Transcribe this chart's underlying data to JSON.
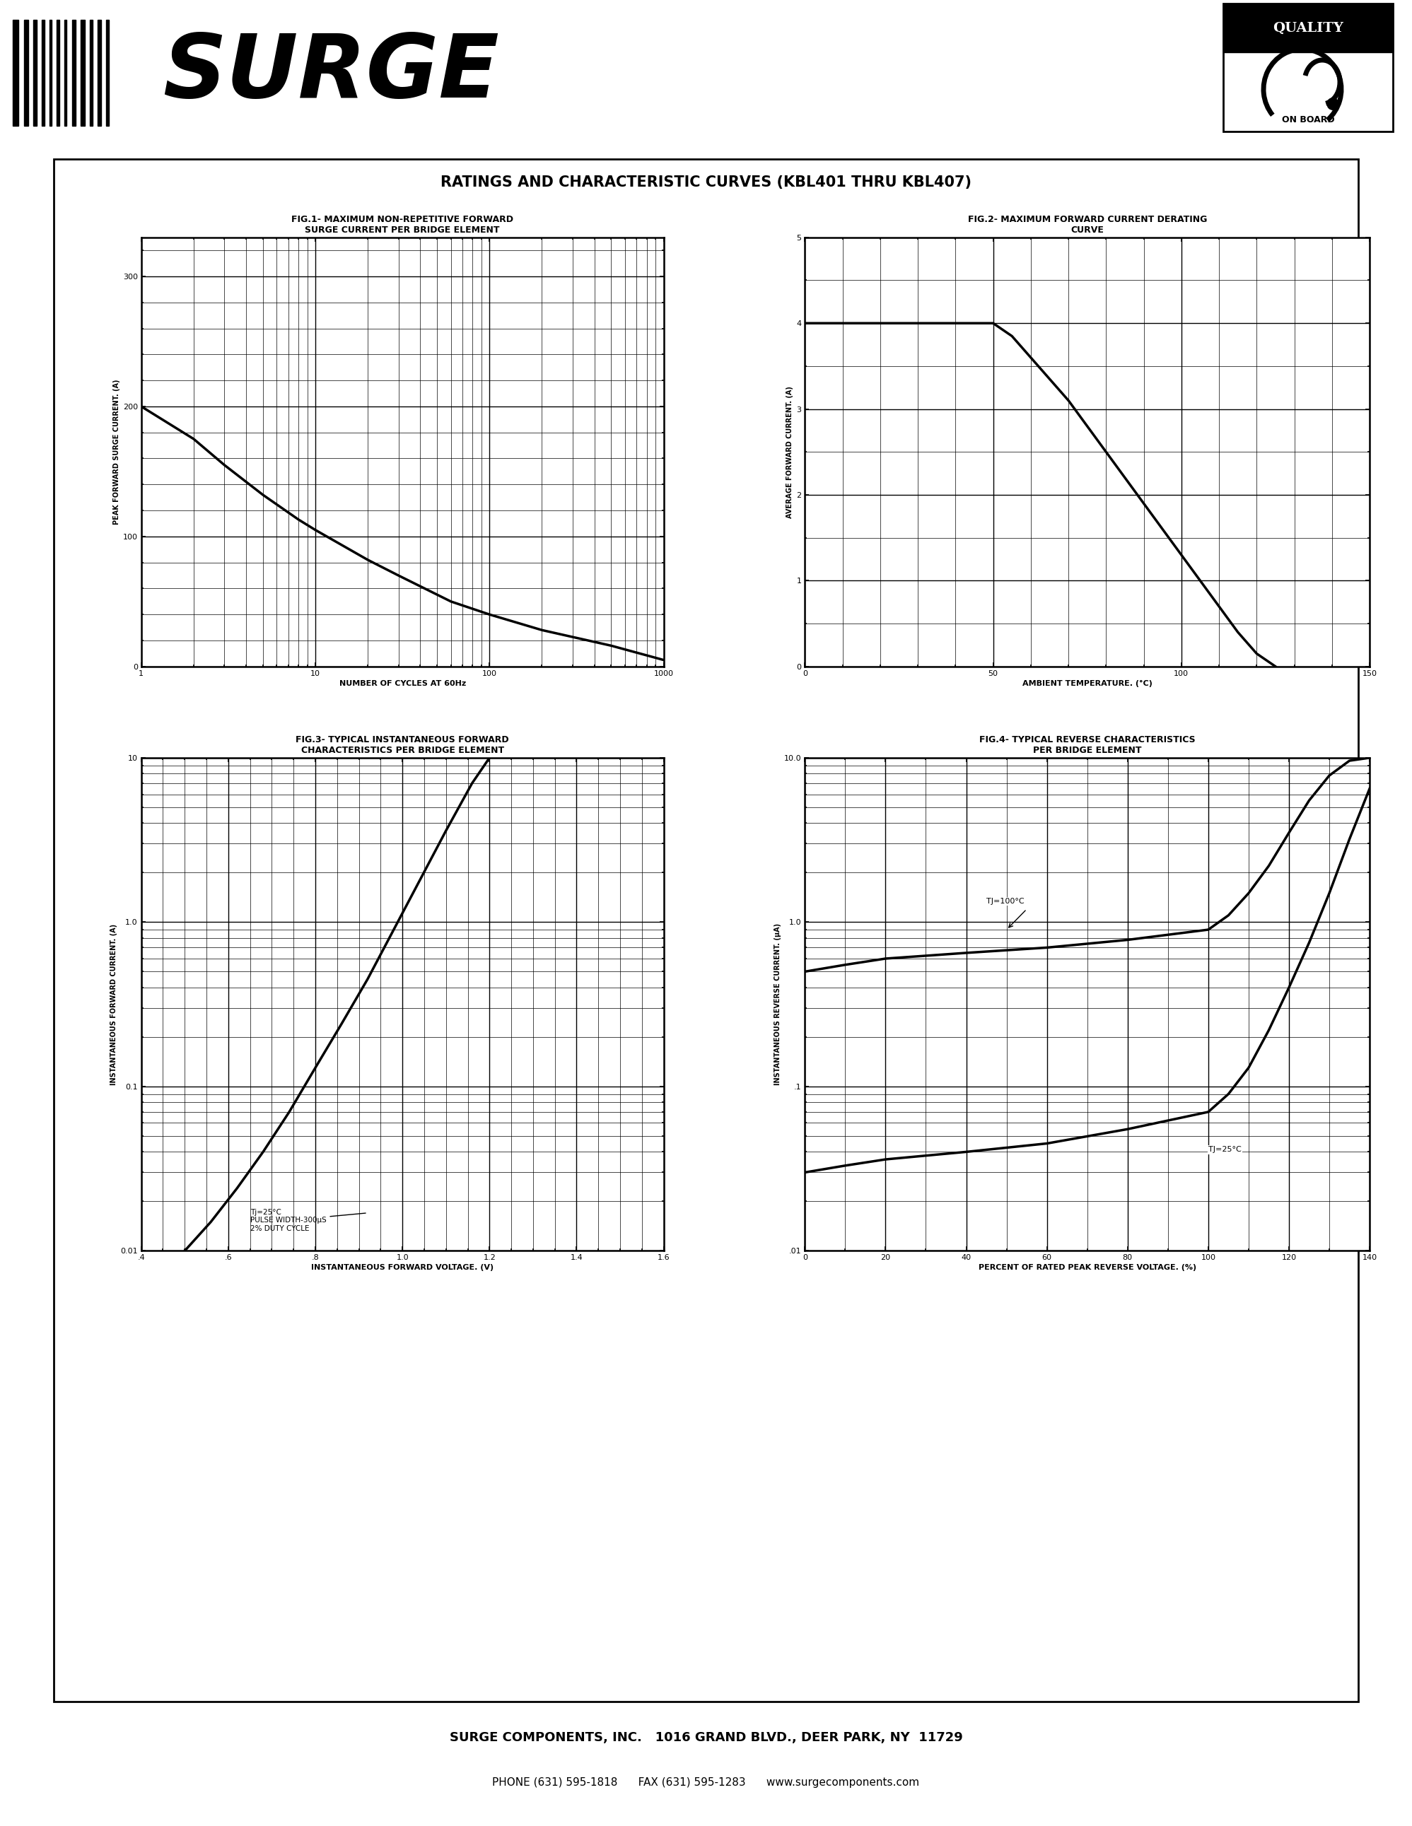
{
  "page_title": "RATINGS AND CHARACTERISTIC CURVES (KBL401 THRU KBL407)",
  "fig1_title1": "FIG.1- MAXIMUM NON-REPETITIVE FORWARD",
  "fig1_title2": "SURGE CURRENT PER BRIDGE ELEMENT",
  "fig1_xlabel": "NUMBER OF CYCLES AT 60Hz",
  "fig1_ylabel": "PEAK FORWARD SURGE CURRENT. (A)",
  "fig1_xlim": [
    1,
    1000
  ],
  "fig1_ylim": [
    0,
    330
  ],
  "fig1_yticks": [
    0,
    100,
    200,
    300
  ],
  "fig1_xticks": [
    1,
    10,
    100,
    1000
  ],
  "fig1_x": [
    1,
    2,
    3,
    5,
    8,
    10,
    20,
    30,
    60,
    100,
    200,
    500,
    1000
  ],
  "fig1_y": [
    200,
    175,
    155,
    132,
    113,
    105,
    82,
    70,
    50,
    40,
    28,
    16,
    5
  ],
  "fig2_title1": "FIG.2- MAXIMUM FORWARD CURRENT DERATING",
  "fig2_title2": "CURVE",
  "fig2_xlabel": "AMBIENT TEMPERATURE. (°C)",
  "fig2_ylabel": "AVERAGE FORWARD CURRENT. (A)",
  "fig2_xlim": [
    0,
    150
  ],
  "fig2_ylim": [
    0,
    5
  ],
  "fig2_yticks": [
    0,
    1,
    2,
    3,
    4,
    5
  ],
  "fig2_xticks": [
    0,
    50,
    100,
    150
  ],
  "fig2_x": [
    0,
    10,
    20,
    30,
    40,
    50,
    55,
    60,
    65,
    70,
    75,
    80,
    85,
    90,
    95,
    100,
    105,
    110,
    115,
    120,
    125
  ],
  "fig2_y": [
    4.0,
    4.0,
    4.0,
    4.0,
    4.0,
    4.0,
    3.85,
    3.6,
    3.35,
    3.1,
    2.8,
    2.5,
    2.2,
    1.9,
    1.6,
    1.3,
    1.0,
    0.7,
    0.4,
    0.15,
    0.0
  ],
  "fig3_title1": "FIG.3- TYPICAL INSTANTANEOUS FORWARD",
  "fig3_title2": "CHARACTERISTICS PER BRIDGE ELEMENT",
  "fig3_xlabel": "INSTANTANEOUS FORWARD VOLTAGE. (V)",
  "fig3_ylabel": "INSTANTANEOUS FORWARD CURRENT. (A)",
  "fig3_xlim": [
    0.4,
    1.6
  ],
  "fig3_ylim_log": [
    0.01,
    10
  ],
  "fig3_xticks": [
    0.4,
    0.6,
    0.8,
    1.0,
    1.2,
    1.4,
    1.6
  ],
  "fig3_xtick_labels": [
    ".4",
    ".6",
    ".8",
    "1.0",
    "1.2",
    "1.4",
    "1.6"
  ],
  "fig3_x": [
    0.5,
    0.56,
    0.62,
    0.68,
    0.74,
    0.8,
    0.86,
    0.92,
    0.98,
    1.04,
    1.1,
    1.16,
    1.2
  ],
  "fig3_y": [
    0.01,
    0.015,
    0.024,
    0.04,
    0.07,
    0.13,
    0.24,
    0.45,
    0.9,
    1.8,
    3.6,
    7.0,
    10.0
  ],
  "fig3_annotation": "Tj=25°C\nPULSE WIDTH-300μS\n2% DUTY CYCLE",
  "fig4_title1": "FIG.4- TYPICAL REVERSE CHARACTERISTICS",
  "fig4_title2": "PER BRIDGE ELEMENT",
  "fig4_xlabel": "PERCENT OF RATED PEAK REVERSE VOLTAGE. (%)",
  "fig4_ylabel": "INSTANTANEOUS REVERSE CURRENT. (μA)",
  "fig4_xlim": [
    0,
    140
  ],
  "fig4_ylim_log": [
    0.01,
    10.0
  ],
  "fig4_xticks": [
    0,
    20,
    40,
    60,
    80,
    100,
    120,
    140
  ],
  "fig4_x_100": [
    0,
    10,
    20,
    40,
    60,
    80,
    100,
    105,
    110,
    115,
    120,
    125,
    130,
    135,
    140
  ],
  "fig4_y_100": [
    0.5,
    0.55,
    0.6,
    0.65,
    0.7,
    0.78,
    0.9,
    1.1,
    1.5,
    2.2,
    3.5,
    5.5,
    7.8,
    9.6,
    10.0
  ],
  "fig4_x_25": [
    0,
    10,
    20,
    40,
    60,
    80,
    100,
    105,
    110,
    115,
    120,
    125,
    130,
    135,
    140
  ],
  "fig4_y_25": [
    0.03,
    0.033,
    0.036,
    0.04,
    0.045,
    0.055,
    0.07,
    0.09,
    0.13,
    0.22,
    0.4,
    0.75,
    1.5,
    3.2,
    6.5
  ],
  "fig4_label_100": "TJ=100°C",
  "fig4_label_25": "TJ=25°C",
  "footer_line1": "SURGE COMPONENTS, INC.   1016 GRAND BLVD., DEER PARK, NY  11729",
  "footer_line2": "PHONE (631) 595-1818      FAX (631) 595-1283      www.surgecomponents.com",
  "bg_color": "#ffffff",
  "line_color": "#000000"
}
